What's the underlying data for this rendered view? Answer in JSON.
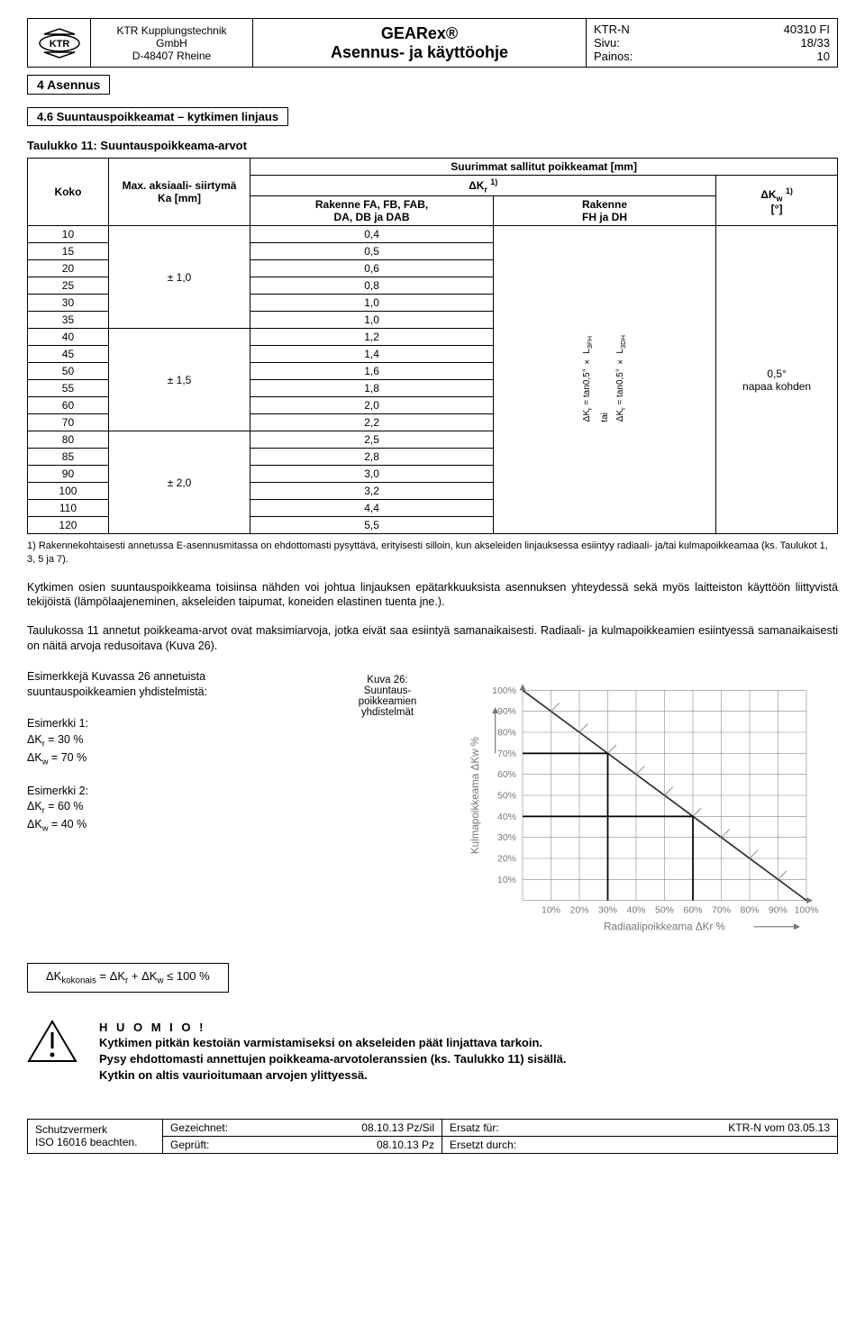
{
  "header": {
    "company_line1": "KTR Kupplungstechnik",
    "company_line2": "GmbH",
    "company_line3": "D-48407 Rheine",
    "title_line1": "GEARex®",
    "title_line2": "Asennus- ja käyttöohje",
    "meta_labels": {
      "doc": "KTR-N",
      "page": "Sivu:",
      "rev": "Painos:"
    },
    "meta_values": {
      "doc": "40310 FI",
      "page": "18/33",
      "rev": "10"
    }
  },
  "section_tab": "4 Asennus",
  "section_heading": "4.6 Suuntauspoikkeamat – kytkimen linjaus",
  "table_title": "Taulukko 11: Suuntauspoikkeama-arvot",
  "table": {
    "col_koko": "Koko",
    "col_ka_line1": "Max. aksiaali- siirtymä",
    "col_ka_line2": "Ka [mm]",
    "col_span_header": "Suurimmat sallitut poikkeamat [mm]",
    "col_kr": "ΔKr 1)",
    "col_fa_line1": "Rakenne FA, FB, FAB,",
    "col_fa_line2": "DA, DB ja DAB",
    "col_fh_line1": "Rakenne",
    "col_fh_line2": "FH ja DH",
    "col_kw_line1": "ΔKw 1)",
    "col_kw_line2": "[°]",
    "koko_vals": [
      "10",
      "15",
      "20",
      "25",
      "30",
      "35",
      "40",
      "45",
      "50",
      "55",
      "60",
      "70",
      "80",
      "85",
      "90",
      "100",
      "110",
      "120"
    ],
    "fa_vals": [
      "0,4",
      "0,5",
      "0,6",
      "0,8",
      "1,0",
      "1,0",
      "1,2",
      "1,4",
      "1,6",
      "1,8",
      "2,0",
      "2,2",
      "2,5",
      "2,8",
      "3,0",
      "3,2",
      "4,4",
      "5,5"
    ],
    "ka_group1": "± 1,0",
    "ka_group2": "± 1,5",
    "ka_group3": "± 2,0",
    "fh_cell_line1": "ΔKr = tan0,5° × L3FH",
    "fh_cell_line2": "tai",
    "fh_cell_line3": "ΔKr = tan0,5° × L3DH",
    "kw_cell_line1": "0,5°",
    "kw_cell_line2": "napaa kohden"
  },
  "footnote": "1) Rakennekohtaisesti annetussa E-asennusmitassa on ehdottomasti pysyttävä, erityisesti silloin, kun akseleiden linjauksessa esiintyy radiaali- ja/tai kulmapoikkeamaa (ks. Taulukot 1, 3, 5 ja 7).",
  "para1": "Kytkimen osien suuntauspoikkeama toisiinsa nähden voi johtua linjauksen epätarkkuuksista asennuksen yhteydessä sekä myös laitteiston käyttöön liittyvistä tekijöistä (lämpölaajeneminen, akseleiden taipumat, koneiden elastinen tuenta jne.).",
  "para2": "Taulukossa 11 annetut poikkeama-arvot ovat maksimiarvoja, jotka eivät saa esiintyä samanaikaisesti. Radiaali- ja kulmapoikkeamien esiintyessä samanaikaisesti on näitä arvoja redusoitava (Kuva 26).",
  "examples": {
    "intro": "Esimerkkejä Kuvassa 26 annetuista suuntauspoikkeamien yhdistelmistä:",
    "ex1_title": "Esimerkki 1:",
    "ex1_l1": "ΔKr = 30 %",
    "ex1_l2": "ΔKw = 70 %",
    "ex2_title": "Esimerkki 2:",
    "ex2_l1": "ΔKr = 60 %",
    "ex2_l2": "ΔKw = 40 %",
    "caption_l1": "Kuva 26:",
    "caption_l2": "Suuntaus-",
    "caption_l3": "poikkeamien",
    "caption_l4": "yhdistelmät"
  },
  "chart": {
    "y_label": "Kulmapoikkeama  ΔKw   %",
    "x_label": "Radiaalipoikkeama  ΔKr   %",
    "ticks": [
      "10%",
      "20%",
      "30%",
      "40%",
      "50%",
      "60%",
      "70%",
      "80%",
      "90%",
      "100%"
    ],
    "grid_color": "#888888",
    "diag_color": "#333333",
    "arrow_color": "#222222",
    "font_color": "#777777"
  },
  "formula": "ΔKkokonais = ΔKr + ΔKw ≤ 100 %",
  "warning": {
    "heading": "H U O M I O !",
    "l1": "Kytkimen pitkän kestoiän varmistamiseksi on akseleiden päät linjattava tarkoin.",
    "l2": "Pysy ehdottomasti annettujen poikkeama-arvotoleranssien (ks. Taulukko 11) sisällä.",
    "l3": "Kytkin on altis vaurioitumaan arvojen ylittyessä."
  },
  "footer": {
    "left_l1": "Schutzvermerk",
    "left_l2": "ISO 16016 beachten.",
    "mid_drawn_label": "Gezeichnet:",
    "mid_drawn_val": "08.10.13 Pz/Sil",
    "mid_checked_label": "Geprüft:",
    "mid_checked_val": "08.10.13 Pz",
    "right_replace_label": "Ersatz für:",
    "right_replace_val": "KTR-N vom 03.05.13",
    "right_by_label": "Ersetzt durch:",
    "right_by_val": ""
  }
}
